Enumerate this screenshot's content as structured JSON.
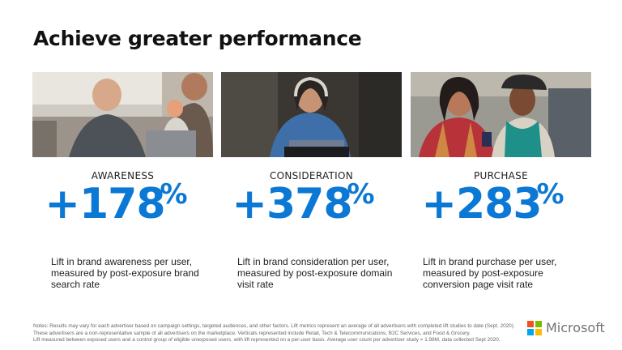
{
  "title": "Achieve greater performance",
  "columns": [
    {
      "label": "AWARENESS",
      "stat": "+178",
      "unit": "%",
      "description": "Lift in brand awareness per user, measured by post-exposure brand search rate",
      "photo": "family-laptop-photo"
    },
    {
      "label": "CONSIDERATION",
      "stat": "+378",
      "unit": "%",
      "description": "Lift in brand consideration per user, measured by post-exposure domain visit rate",
      "photo": "woman-headphones-laptop-photo"
    },
    {
      "label": "PURCHASE",
      "stat": "+283",
      "unit": "%",
      "description": "Lift in brand purchase per user, measured by post-exposure conversion page visit rate",
      "photo": "two-women-phone-photo"
    }
  ],
  "notes": [
    "Notes: Results may vary for each advertiser based on campaign settings, targeted audiences, and other factors. Lift metrics represent an average of all advertisers with completed lift studies to date (Sept. 2020).",
    "These advertisers are a non-representative sample of all advertisers on the marketplace. Verticals represented include Retail, Tech & Telecommunications, B2C Services, and Food & Grocery.",
    "Lift measured between exposed users and a control group of eligible unexposed users, with lift represented on a per-user basis. Average user count per advertiser study = 1.98M, data collected Sept 2020."
  ],
  "brand": {
    "name": "Microsoft",
    "logo_colors": [
      "#f25022",
      "#7fba00",
      "#00a4ef",
      "#ffb900"
    ]
  },
  "accent_color": "#0a78d4"
}
